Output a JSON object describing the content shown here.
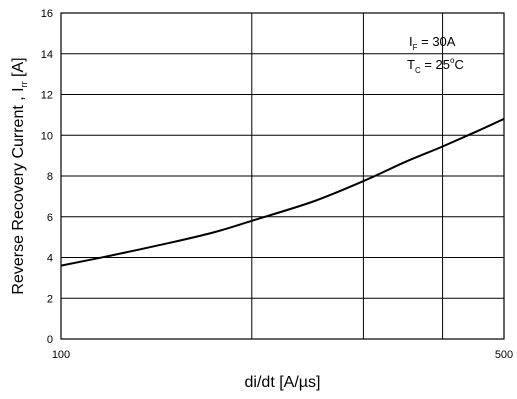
{
  "chart_data": {
    "type": "line",
    "title": "",
    "xlabel": "di/dt [A/µs]",
    "ylabel": "Reverse Recovery Current , I",
    "ylabel_sub": "rr",
    "ylabel_suffix": " [A]",
    "x_scale": "log",
    "xlim": [
      100,
      500
    ],
    "ylim": [
      0,
      16
    ],
    "x_ticks": [
      100,
      500
    ],
    "x_tick_labels": [
      "100",
      "500"
    ],
    "x_gridlines": [
      200,
      300,
      400
    ],
    "y_ticks": [
      0,
      2,
      4,
      6,
      8,
      10,
      12,
      14,
      16
    ],
    "y_tick_labels": [
      "0",
      "2",
      "4",
      "6",
      "8",
      "10",
      "12",
      "14",
      "16"
    ],
    "grid": true,
    "annotations": [
      {
        "main": "I",
        "sub": "F",
        "rest": " = 30A"
      },
      {
        "main": "T",
        "sub": "C",
        "rest": " = 25",
        "sup": "o",
        "rest2": "C"
      }
    ],
    "series": [
      {
        "x": [
          100,
          120,
          150,
          175,
          200,
          250,
          300,
          350,
          400,
          450,
          500
        ],
        "values": [
          3.6,
          4.1,
          4.75,
          5.25,
          5.8,
          6.75,
          7.75,
          8.7,
          9.45,
          10.15,
          10.8
        ]
      }
    ]
  }
}
